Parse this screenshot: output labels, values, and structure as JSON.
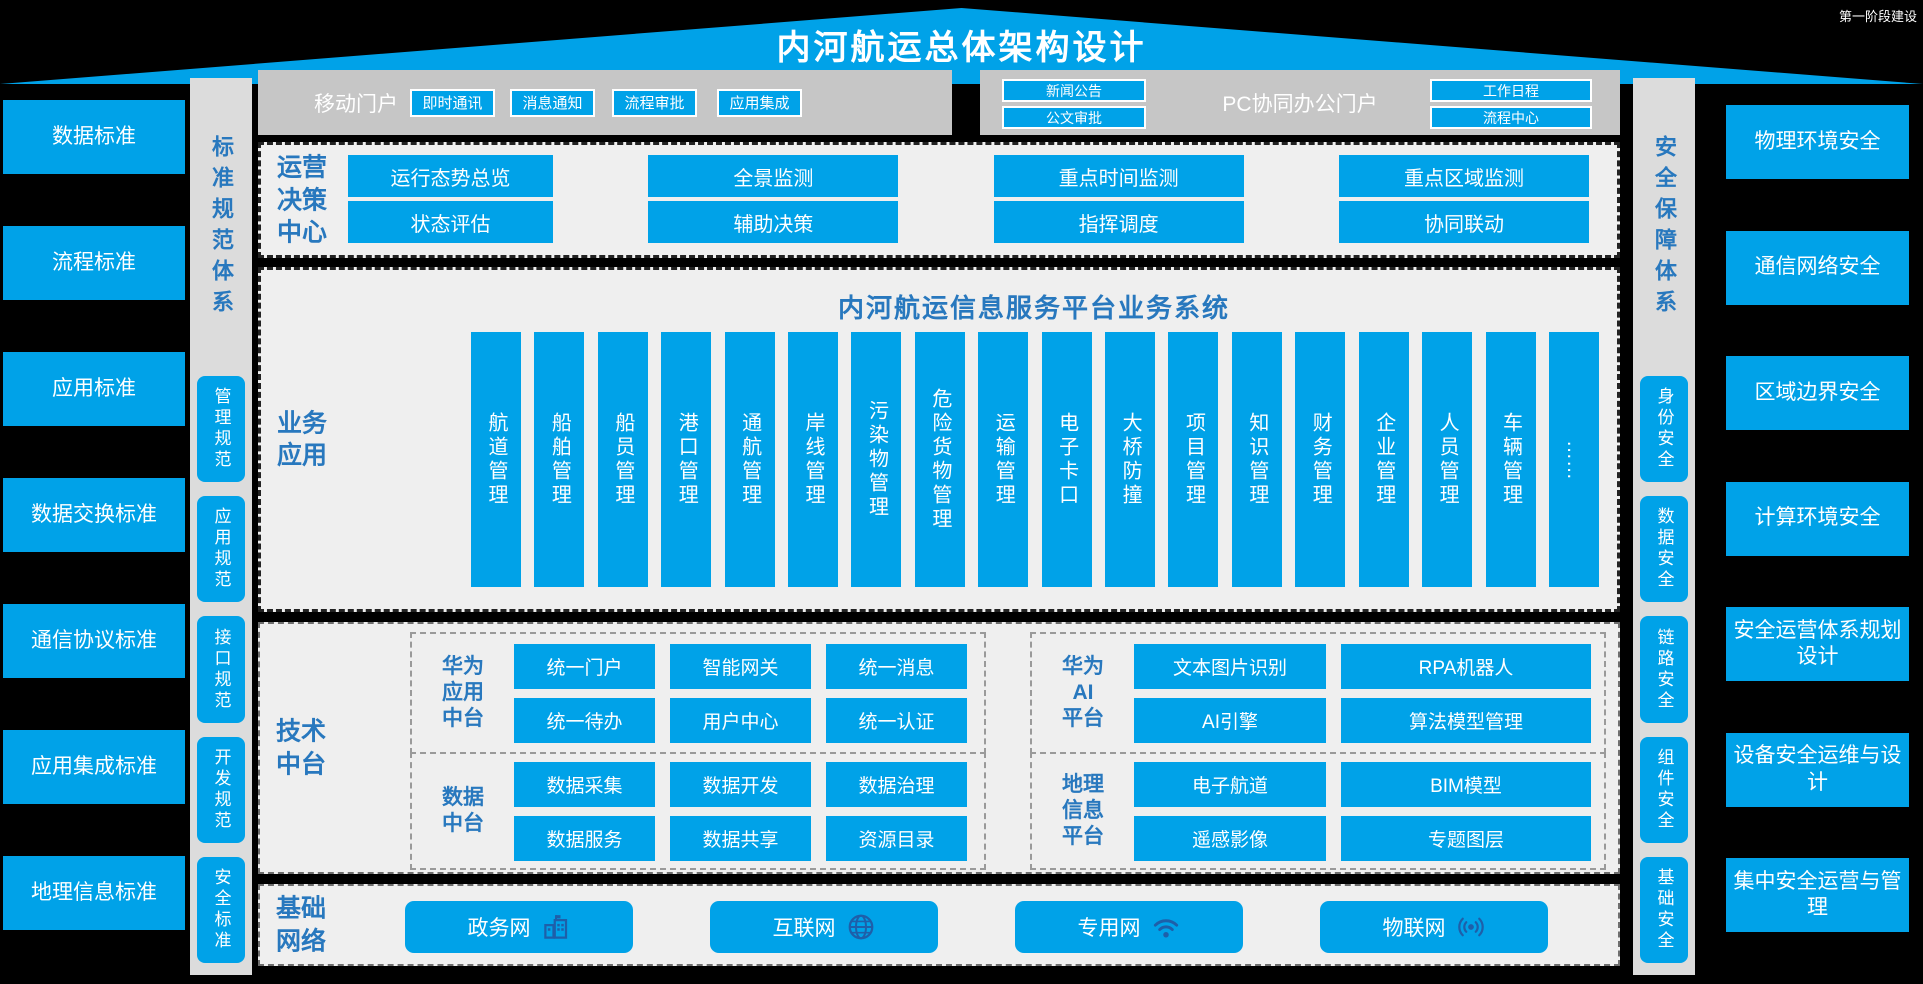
{
  "title": "内河航运总体架构设计",
  "stage_note": "第一阶段建设",
  "colors": {
    "accent_blue": "#00a2e8",
    "label_blue": "#2878be",
    "icon_blue": "#1e5fa9",
    "panel_gray": "#efefef",
    "portal_gray": "#c6c6c6",
    "column_gray": "#dcdcdc"
  },
  "left_standards": [
    "数据标准",
    "流程标准",
    "应用标准",
    "数据交换标准",
    "通信协议标准",
    "应用集成标准",
    "地理信息标准"
  ],
  "standards_column": {
    "title": "标准规范体系",
    "items": [
      "管理规范",
      "应用规范",
      "接口规范",
      "开发规范",
      "安全标准"
    ]
  },
  "security_column": {
    "title": "安全保障体系",
    "items": [
      "身份安全",
      "数据安全",
      "链路安全",
      "组件安全",
      "基础安全"
    ]
  },
  "right_security": [
    "物理环境安全",
    "通信网络安全",
    "区域边界安全",
    "计算环境安全",
    "安全运营体系规划设计",
    "设备安全运维与设计",
    "集中安全运营与管理"
  ],
  "portals": {
    "mobile": {
      "label": "移动门户",
      "buttons": [
        "即时通讯",
        "消息通知",
        "流程审批",
        "应用集成"
      ]
    },
    "pc": {
      "label": "PC协同办公门户",
      "left_buttons": [
        "新闻公告",
        "公文审批"
      ],
      "right_buttons": [
        "工作日程",
        "流程中心"
      ]
    }
  },
  "operation_center": {
    "label_lines": [
      "运营",
      "决策",
      "中心"
    ],
    "rows": [
      [
        "运行态势总览",
        "全景监测",
        "重点时间监测",
        "重点区域监测"
      ],
      [
        "状态评估",
        "辅助决策",
        "指挥调度",
        "协同联动"
      ]
    ]
  },
  "business": {
    "label_lines": [
      "业务",
      "应用"
    ],
    "title": "内河航运信息服务平台业务系统",
    "systems": [
      "航道管理",
      "船舶管理",
      "船员管理",
      "港口管理",
      "通航管理",
      "岸线管理",
      "污染物管理",
      "危险货物管理",
      "运输管理",
      "电子卡口",
      "大桥防撞",
      "项目管理",
      "知识管理",
      "财务管理",
      "企业管理",
      "人员管理",
      "车辆管理",
      "……"
    ]
  },
  "tech": {
    "label_lines": [
      "技术",
      "中台"
    ],
    "groups": [
      {
        "label_lines": [
          "华为",
          "应用",
          "中台"
        ],
        "rows": [
          [
            "统一门户",
            "智能网关",
            "统一消息"
          ],
          [
            "统一待办",
            "用户中心",
            "统一认证"
          ]
        ]
      },
      {
        "label_lines": [
          "数据",
          "中台"
        ],
        "rows": [
          [
            "数据采集",
            "数据开发",
            "数据治理"
          ],
          [
            "数据服务",
            "数据共享",
            "资源目录"
          ]
        ]
      },
      {
        "label_lines": [
          "华为",
          "AI",
          "平台"
        ],
        "rows": [
          [
            "文本图片识别",
            "RPA机器人"
          ],
          [
            "AI引擎",
            "算法模型管理"
          ]
        ]
      },
      {
        "label_lines": [
          "地理",
          "信息",
          "平台"
        ],
        "rows": [
          [
            "电子航道",
            "BIM模型"
          ],
          [
            "遥感影像",
            "专题图层"
          ]
        ]
      }
    ]
  },
  "network": {
    "label_lines": [
      "基础",
      "网络"
    ],
    "items": [
      {
        "label": "政务网",
        "icon": "building-icon"
      },
      {
        "label": "互联网",
        "icon": "globe-icon"
      },
      {
        "label": "专用网",
        "icon": "wifi-icon"
      },
      {
        "label": "物联网",
        "icon": "iot-icon"
      }
    ]
  }
}
